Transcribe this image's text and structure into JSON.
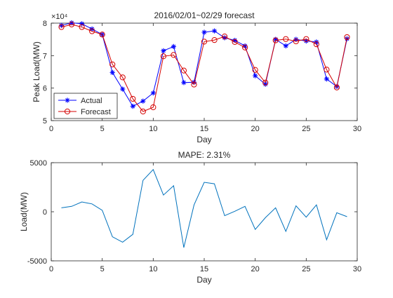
{
  "chart_data": [
    {
      "type": "line",
      "title": "2016/02/01~02/29 forecast",
      "xlabel": "Day",
      "ylabel": "Peak Load(MW)",
      "exponent_label": "×10⁴",
      "xlim": [
        0,
        30
      ],
      "ylim": [
        5,
        8
      ],
      "xticks": [
        0,
        5,
        10,
        15,
        20,
        25,
        30
      ],
      "yticks": [
        5,
        6,
        7,
        8
      ],
      "grid": false,
      "legend_position": "bottom-left",
      "x": [
        1,
        2,
        3,
        4,
        5,
        6,
        7,
        8,
        9,
        10,
        11,
        12,
        13,
        14,
        15,
        16,
        17,
        18,
        19,
        20,
        21,
        22,
        23,
        24,
        25,
        26,
        27,
        28,
        29
      ],
      "series": [
        {
          "name": "Actual",
          "color": "#0000ff",
          "marker": "asterisk",
          "values": [
            7.93,
            8.01,
            7.98,
            7.82,
            7.65,
            6.48,
            5.97,
            5.44,
            5.6,
            5.85,
            7.15,
            7.28,
            6.17,
            6.18,
            7.72,
            7.76,
            7.55,
            7.47,
            7.3,
            6.38,
            6.12,
            7.5,
            7.3,
            7.5,
            7.45,
            7.42,
            6.28,
            6.05,
            7.52
          ]
        },
        {
          "name": "Forecast",
          "color": "#d40000",
          "marker": "circle",
          "values": [
            7.88,
            7.96,
            7.88,
            7.75,
            7.65,
            6.73,
            6.33,
            5.67,
            5.28,
            5.41,
            6.98,
            7.02,
            6.54,
            6.11,
            7.43,
            7.48,
            7.59,
            7.42,
            7.25,
            6.56,
            6.17,
            7.47,
            7.51,
            7.44,
            7.51,
            7.35,
            6.57,
            6.02,
            7.57
          ]
        }
      ]
    },
    {
      "type": "line",
      "title": "MAPE: 2.31%",
      "xlabel": "Day",
      "ylabel": "Load(MW)",
      "xlim": [
        0,
        30
      ],
      "ylim": [
        -5000,
        5000
      ],
      "xticks": [
        0,
        5,
        10,
        15,
        20,
        25,
        30
      ],
      "yticks": [
        -5000,
        0,
        5000
      ],
      "grid": false,
      "x": [
        1,
        2,
        3,
        4,
        5,
        6,
        7,
        8,
        9,
        10,
        11,
        12,
        13,
        14,
        15,
        16,
        17,
        18,
        19,
        20,
        21,
        22,
        23,
        24,
        25,
        26,
        27,
        28,
        29
      ],
      "series": [
        {
          "color": "#0072bd",
          "values": [
            400,
            550,
            1000,
            800,
            150,
            -2550,
            -3100,
            -2300,
            3200,
            4300,
            1700,
            2650,
            -3650,
            700,
            3000,
            2850,
            -400,
            50,
            550,
            -1800,
            -600,
            400,
            -2000,
            600,
            -550,
            700,
            -2850,
            -100,
            -500
          ]
        }
      ]
    }
  ]
}
